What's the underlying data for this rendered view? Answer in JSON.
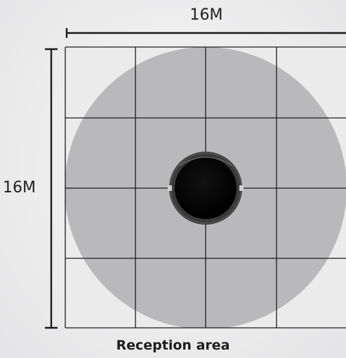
{
  "dimensions": {
    "width_label": "16M",
    "height_label": "16M"
  },
  "caption": "Reception area",
  "grid": {
    "columns": 4,
    "rows": 4
  },
  "colors": {
    "background": "#ececed",
    "grid_fill": "#ebebec",
    "coverage_circle": "#b9b9bb",
    "grid_lines": "#1c1c1c",
    "device_outer": "#3a3a3a",
    "device_inner": "#050505",
    "text": "#1e1e1e"
  },
  "icons": {
    "device": "ceiling-receiver-icon"
  }
}
